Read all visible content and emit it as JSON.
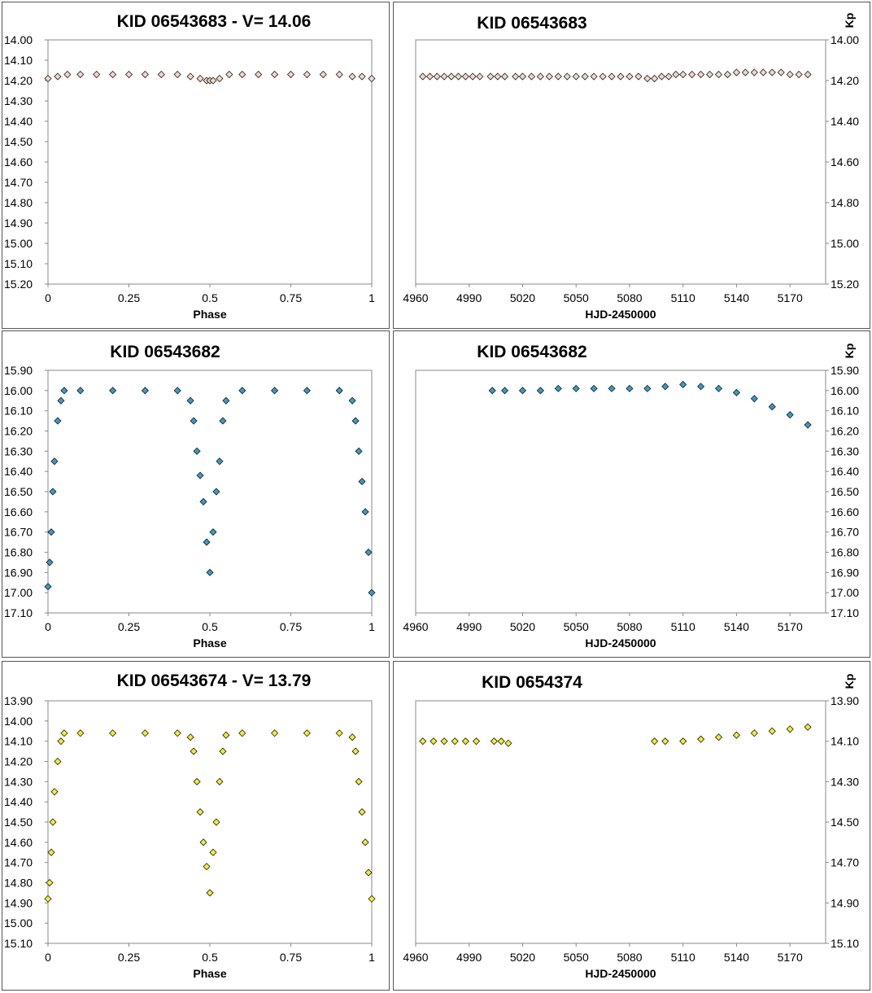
{
  "chart_data": [
    {
      "type": "scatter",
      "title": "KID 06543683  - V= 14.06",
      "xlabel": "Phase",
      "ylabel": "",
      "xlim": [
        0,
        1
      ],
      "ylim": [
        15.2,
        14.0
      ],
      "x_ticks": [
        0,
        0.25,
        0.5,
        0.75,
        1
      ],
      "x_tick_labels": [
        "0",
        "0.25",
        "0.5",
        "0.75",
        "1"
      ],
      "y_tick_labels": [
        "14.00",
        "14.10",
        "14.20",
        "14.30",
        "14.40",
        "14.50",
        "14.60",
        "14.70",
        "14.80",
        "14.90",
        "15.00",
        "15.10",
        "15.20"
      ],
      "y_ticks": [
        14.0,
        14.1,
        14.2,
        14.3,
        14.4,
        14.5,
        14.6,
        14.7,
        14.8,
        14.9,
        15.0,
        15.1,
        15.2
      ],
      "y_axis_side": "left",
      "marker_color": "#f2d6c8",
      "series": [
        {
          "x": [
            0,
            0.03,
            0.06,
            0.1,
            0.15,
            0.2,
            0.25,
            0.3,
            0.35,
            0.4,
            0.44,
            0.47,
            0.49,
            0.5,
            0.51,
            0.53,
            0.56,
            0.6,
            0.65,
            0.7,
            0.75,
            0.8,
            0.85,
            0.9,
            0.94,
            0.97,
            1
          ],
          "y": [
            14.19,
            14.18,
            14.17,
            14.17,
            14.17,
            14.17,
            14.17,
            14.17,
            14.17,
            14.17,
            14.18,
            14.19,
            14.2,
            14.2,
            14.2,
            14.19,
            14.17,
            14.17,
            14.17,
            14.17,
            14.17,
            14.17,
            14.17,
            14.17,
            14.18,
            14.18,
            14.19
          ]
        }
      ]
    },
    {
      "type": "scatter",
      "title": "KID 06543683",
      "xlabel": "HJD-2450000",
      "ylabel": "Kp",
      "xlim": [
        4960,
        5190
      ],
      "ylim": [
        15.2,
        14.0
      ],
      "x_ticks": [
        4960,
        4990,
        5020,
        5050,
        5080,
        5110,
        5140,
        5170
      ],
      "x_tick_labels": [
        "4960",
        "4990",
        "5020",
        "5050",
        "5080",
        "5110",
        "5140",
        "5170"
      ],
      "y_tick_labels": [
        "14.00",
        "14.20",
        "14.40",
        "14.60",
        "14.80",
        "15.00",
        "15.20"
      ],
      "y_ticks": [
        14.0,
        14.2,
        14.4,
        14.6,
        14.8,
        15.0,
        15.2
      ],
      "y_axis_side": "right",
      "marker_color": "#f2d6c8",
      "series": [
        {
          "x": [
            4964,
            4968,
            4972,
            4976,
            4980,
            4984,
            4988,
            4992,
            4996,
            5002,
            5006,
            5010,
            5016,
            5020,
            5025,
            5030,
            5035,
            5040,
            5045,
            5050,
            5055,
            5060,
            5065,
            5070,
            5075,
            5080,
            5085,
            5090,
            5094,
            5098,
            5102,
            5106,
            5110,
            5115,
            5120,
            5125,
            5130,
            5135,
            5140,
            5145,
            5150,
            5155,
            5160,
            5165,
            5170,
            5175,
            5180
          ],
          "y": [
            14.18,
            14.18,
            14.18,
            14.18,
            14.18,
            14.18,
            14.18,
            14.18,
            14.18,
            14.18,
            14.18,
            14.18,
            14.18,
            14.18,
            14.18,
            14.18,
            14.18,
            14.18,
            14.18,
            14.18,
            14.18,
            14.18,
            14.18,
            14.18,
            14.18,
            14.18,
            14.18,
            14.19,
            14.19,
            14.18,
            14.18,
            14.17,
            14.17,
            14.17,
            14.17,
            14.17,
            14.17,
            14.17,
            14.16,
            14.16,
            14.16,
            14.16,
            14.16,
            14.16,
            14.17,
            14.17,
            14.17
          ]
        }
      ]
    },
    {
      "type": "scatter",
      "title": "KID 06543682",
      "xlabel": "Phase",
      "ylabel": "",
      "xlim": [
        0,
        1
      ],
      "ylim": [
        17.1,
        15.9
      ],
      "x_ticks": [
        0,
        0.25,
        0.5,
        0.75,
        1
      ],
      "x_tick_labels": [
        "0",
        "0.25",
        "0.5",
        "0.75",
        "1"
      ],
      "y_tick_labels": [
        "15.90",
        "16.00",
        "16.10",
        "16.20",
        "16.30",
        "16.40",
        "16.50",
        "16.60",
        "16.70",
        "16.80",
        "16.90",
        "17.00",
        "17.10"
      ],
      "y_ticks": [
        15.9,
        16.0,
        16.1,
        16.2,
        16.3,
        16.4,
        16.5,
        16.6,
        16.7,
        16.8,
        16.9,
        17.0,
        17.1
      ],
      "y_axis_side": "left",
      "marker_color": "#3a9ac8",
      "series": [
        {
          "x": [
            0,
            0.005,
            0.01,
            0.015,
            0.02,
            0.03,
            0.04,
            0.05,
            0.1,
            0.2,
            0.3,
            0.4,
            0.44,
            0.45,
            0.46,
            0.47,
            0.48,
            0.49,
            0.5,
            0.51,
            0.52,
            0.53,
            0.54,
            0.55,
            0.6,
            0.7,
            0.8,
            0.9,
            0.94,
            0.95,
            0.96,
            0.97,
            0.98,
            0.99,
            1
          ],
          "y": [
            16.97,
            16.85,
            16.7,
            16.5,
            16.35,
            16.15,
            16.05,
            16.0,
            16.0,
            16.0,
            16.0,
            16.0,
            16.05,
            16.15,
            16.3,
            16.42,
            16.55,
            16.75,
            16.9,
            16.7,
            16.5,
            16.35,
            16.15,
            16.05,
            16.0,
            16.0,
            16.0,
            16.0,
            16.05,
            16.15,
            16.3,
            16.45,
            16.6,
            16.8,
            17.0
          ]
        }
      ]
    },
    {
      "type": "scatter",
      "title": "KID 06543682",
      "xlabel": "HJD-2450000",
      "ylabel": "Kp",
      "xlim": [
        4960,
        5190
      ],
      "ylim": [
        17.1,
        15.9
      ],
      "x_ticks": [
        4960,
        4990,
        5020,
        5050,
        5080,
        5110,
        5140,
        5170
      ],
      "x_tick_labels": [
        "4960",
        "4990",
        "5020",
        "5050",
        "5080",
        "5110",
        "5140",
        "5170"
      ],
      "y_tick_labels": [
        "15.90",
        "16.00",
        "16.10",
        "16.20",
        "16.30",
        "16.40",
        "16.50",
        "16.60",
        "16.70",
        "16.80",
        "16.90",
        "17.00",
        "17.10"
      ],
      "y_ticks": [
        15.9,
        16.0,
        16.1,
        16.2,
        16.3,
        16.4,
        16.5,
        16.6,
        16.7,
        16.8,
        16.9,
        17.0,
        17.1
      ],
      "y_axis_side": "right",
      "marker_color": "#3a9ac8",
      "series": [
        {
          "x": [
            5003,
            5010,
            5020,
            5030,
            5040,
            5050,
            5060,
            5070,
            5080,
            5090,
            5100,
            5110,
            5120,
            5130,
            5140,
            5150,
            5160,
            5170,
            5180
          ],
          "y": [
            16.0,
            16.0,
            16.0,
            16.0,
            15.99,
            15.99,
            15.99,
            15.99,
            15.99,
            15.99,
            15.98,
            15.97,
            15.98,
            15.99,
            16.01,
            16.04,
            16.08,
            16.12,
            16.17
          ]
        }
      ]
    },
    {
      "type": "scatter",
      "title": "KID 06543674  - V= 13.79",
      "xlabel": "Phase",
      "ylabel": "",
      "xlim": [
        0,
        1
      ],
      "ylim": [
        15.1,
        13.9
      ],
      "x_ticks": [
        0,
        0.25,
        0.5,
        0.75,
        1
      ],
      "x_tick_labels": [
        "0",
        "0.25",
        "0.5",
        "0.75",
        "1"
      ],
      "y_tick_labels": [
        "13.90",
        "14.00",
        "14.10",
        "14.20",
        "14.30",
        "14.40",
        "14.50",
        "14.60",
        "14.70",
        "14.80",
        "14.90",
        "15.00",
        "15.10"
      ],
      "y_ticks": [
        13.9,
        14.0,
        14.1,
        14.2,
        14.3,
        14.4,
        14.5,
        14.6,
        14.7,
        14.8,
        14.9,
        15.0,
        15.1
      ],
      "y_axis_side": "left",
      "marker_color": "#f0ee30",
      "series": [
        {
          "x": [
            0,
            0.005,
            0.01,
            0.015,
            0.02,
            0.03,
            0.04,
            0.05,
            0.1,
            0.2,
            0.3,
            0.4,
            0.44,
            0.45,
            0.46,
            0.47,
            0.48,
            0.49,
            0.5,
            0.51,
            0.52,
            0.53,
            0.54,
            0.55,
            0.6,
            0.7,
            0.8,
            0.9,
            0.94,
            0.95,
            0.96,
            0.97,
            0.98,
            0.99,
            1
          ],
          "y": [
            14.88,
            14.8,
            14.65,
            14.5,
            14.35,
            14.2,
            14.1,
            14.06,
            14.06,
            14.06,
            14.06,
            14.06,
            14.08,
            14.15,
            14.3,
            14.45,
            14.6,
            14.72,
            14.85,
            14.65,
            14.5,
            14.3,
            14.15,
            14.07,
            14.06,
            14.06,
            14.06,
            14.06,
            14.08,
            14.15,
            14.3,
            14.45,
            14.6,
            14.75,
            14.88
          ]
        }
      ]
    },
    {
      "type": "scatter",
      "title": "KID 0654374",
      "xlabel": "HJD-2450000",
      "ylabel": "Kp",
      "xlim": [
        4960,
        5190
      ],
      "ylim": [
        15.1,
        13.9
      ],
      "x_ticks": [
        4960,
        4990,
        5020,
        5050,
        5080,
        5110,
        5140,
        5170
      ],
      "x_tick_labels": [
        "4960",
        "4990",
        "5020",
        "5050",
        "5080",
        "5110",
        "5140",
        "5170"
      ],
      "y_tick_labels": [
        "13.90",
        "14.10",
        "14.30",
        "14.50",
        "14.70",
        "14.90",
        "15.10"
      ],
      "y_ticks": [
        13.9,
        14.1,
        14.3,
        14.5,
        14.7,
        14.9,
        15.1
      ],
      "y_axis_side": "right",
      "marker_color": "#f0ee30",
      "series": [
        {
          "x": [
            4964,
            4970,
            4976,
            4982,
            4988,
            4994,
            5004,
            5008,
            5012,
            5094,
            5100,
            5110,
            5120,
            5130,
            5140,
            5150,
            5160,
            5170,
            5180
          ],
          "y": [
            14.1,
            14.1,
            14.1,
            14.1,
            14.1,
            14.1,
            14.1,
            14.1,
            14.11,
            14.1,
            14.1,
            14.1,
            14.09,
            14.08,
            14.07,
            14.06,
            14.05,
            14.04,
            14.03
          ]
        }
      ]
    }
  ]
}
